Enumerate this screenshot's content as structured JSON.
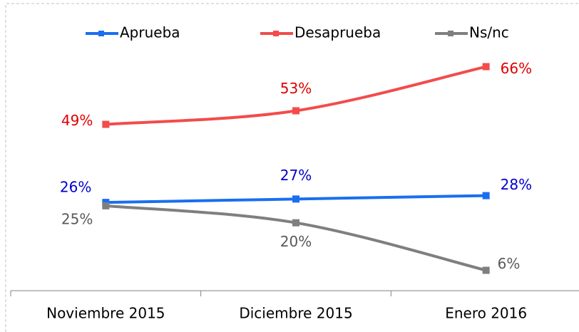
{
  "chart_data": {
    "type": "line",
    "categories": [
      "Noviembre 2015",
      "Diciembre 2015",
      "Enero 2016"
    ],
    "series": [
      {
        "name": "Aprueba",
        "color": "#1a6ef0",
        "label_color": "#0000d0",
        "values": [
          26,
          27,
          28
        ],
        "value_labels": [
          "26%",
          "27%",
          "28%"
        ]
      },
      {
        "name": "Desaprueba",
        "color": "#f24c4c",
        "label_color": "#e00000",
        "values": [
          49,
          53,
          66
        ],
        "value_labels": [
          "49%",
          "53%",
          "66%"
        ]
      },
      {
        "name": "Ns/nc",
        "color": "#7f7f7f",
        "label_color": "#595959",
        "values": [
          25,
          20,
          6
        ],
        "value_labels": [
          "25%",
          "20%",
          "6%"
        ]
      }
    ],
    "ylim": [
      0,
      85
    ],
    "legend": "top"
  }
}
